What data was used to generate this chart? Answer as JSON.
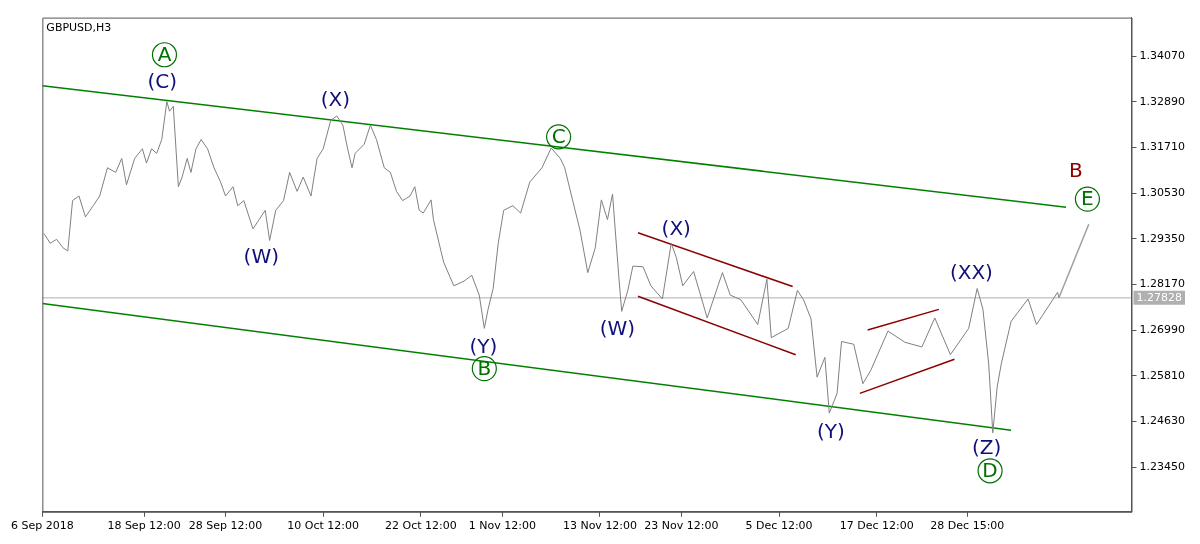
{
  "chart_data": {
    "type": "line",
    "title": "GBPUSD,H3",
    "xlim": [
      "2018-09-06T00:00",
      "2019-01-17T19:00"
    ],
    "ylim": [
      1.223,
      1.3507
    ],
    "xticks": [
      {
        "value": "2018-09-06T00:00",
        "label": "6 Sep 2018"
      },
      {
        "value": "2018-09-18T12:00",
        "label": "18 Sep 12:00"
      },
      {
        "value": "2018-09-28T12:00",
        "label": "28 Sep 12:00"
      },
      {
        "value": "2018-10-10T12:00",
        "label": "10 Oct 12:00"
      },
      {
        "value": "2018-10-22T12:00",
        "label": "22 Oct 12:00"
      },
      {
        "value": "2018-11-01T12:00",
        "label": "1 Nov 12:00"
      },
      {
        "value": "2018-11-13T12:00",
        "label": "13 Nov 12:00"
      },
      {
        "value": "2018-11-23T12:00",
        "label": "23 Nov 12:00"
      },
      {
        "value": "2018-12-05T12:00",
        "label": "5 Dec 12:00"
      },
      {
        "value": "2018-12-17T12:00",
        "label": "17 Dec 12:00"
      },
      {
        "value": "2018-12-28T15:00",
        "label": "28 Dec 15:00"
      }
    ],
    "yticks": [
      {
        "value": 1.2345,
        "label": "1.23450"
      },
      {
        "value": 1.2463,
        "label": "1.24630"
      },
      {
        "value": 1.2581,
        "label": "1.25810"
      },
      {
        "value": 1.2699,
        "label": "1.26990"
      },
      {
        "value": 1.2817,
        "label": "1.28170"
      },
      {
        "value": 1.2935,
        "label": "1.29350"
      },
      {
        "value": 1.3053,
        "label": "1.30530"
      },
      {
        "value": 1.3171,
        "label": "1.31710"
      },
      {
        "value": 1.3289,
        "label": "1.32890"
      },
      {
        "value": 1.3407,
        "label": "1.34070"
      }
    ],
    "grid": false,
    "legend": false,
    "marker": "none",
    "line_style": "solid",
    "series": [
      {
        "color": "#808080",
        "x": [
          "2018-09-06T05:00",
          "2018-09-06T23:00",
          "2018-09-07T18:00",
          "2018-09-08T13:00",
          "2018-09-09T03:00",
          "2018-09-09T17:00",
          "2018-09-10T12:00",
          "2018-09-11T07:00",
          "2018-09-12T06:00",
          "2018-09-13T01:00",
          "2018-09-14T00:00",
          "2018-09-15T00:00",
          "2018-09-15T18:00",
          "2018-09-16T08:00",
          "2018-09-17T08:00",
          "2018-09-18T07:00",
          "2018-09-18T19:00",
          "2018-09-19T10:00",
          "2018-09-20T01:00",
          "2018-09-20T16:00",
          "2018-09-21T07:00",
          "2018-09-21T15:00",
          "2018-09-22T02:00",
          "2018-09-22T17:00",
          "2018-09-23T04:00",
          "2018-09-23T19:00",
          "2018-09-24T06:00",
          "2018-09-24T21:00",
          "2018-09-25T12:00",
          "2018-09-26T07:00",
          "2018-09-27T02:00",
          "2018-09-27T21:00",
          "2018-09-28T12:00",
          "2018-09-29T10:00",
          "2018-09-30T00:00",
          "2018-09-30T18:00",
          "2018-10-01T21:00",
          "2018-10-02T15:00",
          "2018-10-03T09:00",
          "2018-10-03T22:00",
          "2018-10-04T16:00",
          "2018-10-05T15:00",
          "2018-10-06T09:00",
          "2018-10-07T07:00",
          "2018-10-08T01:00",
          "2018-10-09T00:00",
          "2018-10-09T18:00",
          "2018-10-10T12:00",
          "2018-10-11T10:00",
          "2018-10-12T04:00",
          "2018-10-12T22:00",
          "2018-10-13T12:00",
          "2018-10-14T01:00",
          "2018-10-14T10:00",
          "2018-10-15T13:00",
          "2018-10-16T07:00",
          "2018-10-17T01:00",
          "2018-10-18T00:00",
          "2018-10-18T18:00",
          "2018-10-19T12:00",
          "2018-10-20T06:00",
          "2018-10-21T04:00",
          "2018-10-21T18:00",
          "2018-10-22T07:00",
          "2018-10-22T19:00",
          "2018-10-23T18:00",
          "2018-10-24T01:00",
          "2018-10-25T07:00",
          "2018-10-26T13:00",
          "2018-10-27T19:00",
          "2018-10-28T18:00",
          "2018-10-29T16:00",
          "2018-10-30T07:00",
          "2018-10-30T18:00",
          "2018-10-31T09:00",
          "2018-11-01T00:00",
          "2018-11-01T16:00",
          "2018-11-02T19:00",
          "2018-11-03T18:00",
          "2018-11-04T21:00",
          "2018-11-06T09:00",
          "2018-11-07T12:00",
          "2018-11-08T15:00",
          "2018-11-09T04:00",
          "2018-11-10T03:00",
          "2018-11-11T01:00",
          "2018-11-12T00:00",
          "2018-11-12T22:00",
          "2018-11-13T16:00",
          "2018-11-14T10:00",
          "2018-11-15T01:00",
          "2018-11-15T20:00",
          "2018-11-16T04:00",
          "2018-11-16T22:00",
          "2018-11-17T13:00",
          "2018-11-18T19:00",
          "2018-11-19T18:00",
          "2018-11-21T04:00",
          "2018-11-22T06:00",
          "2018-11-22T21:00",
          "2018-11-23T16:00",
          "2018-11-25T00:00",
          "2018-11-26T16:00",
          "2018-11-28T13:00",
          "2018-11-29T12:00",
          "2018-11-30T19:00",
          "2018-12-02T21:00",
          "2018-12-04T00:00",
          "2018-12-04T13:00",
          "2018-12-06T15:00",
          "2018-12-07T18:00",
          "2018-12-08T12:00",
          "2018-12-09T10:00",
          "2018-12-10T04:00",
          "2018-12-11T03:00",
          "2018-12-11T16:00",
          "2018-12-12T15:00",
          "2018-12-13T04:00",
          "2018-12-14T16:00",
          "2018-12-15T19:00",
          "2018-12-16T18:00",
          "2018-12-18T21:00",
          "2018-12-20T23:00",
          "2018-12-23T01:00",
          "2018-12-24T15:00",
          "2018-12-26T13:00",
          "2018-12-28T19:00",
          "2018-12-29T20:00",
          "2018-12-30T13:00",
          "2018-12-31T06:00",
          "2018-12-31T18:00",
          "2019-01-01T07:00",
          "2019-01-01T19:00",
          "2019-01-03T00:00",
          "2019-01-05T02:00",
          "2019-01-06T03:00",
          "2019-01-08T17:00",
          "2019-01-08T21:00"
        ],
        "values": [
          1.2949,
          1.2924,
          1.2934,
          1.2912,
          1.2904,
          1.3034,
          1.3046,
          1.2992,
          1.3021,
          1.3046,
          1.3119,
          1.3107,
          1.3143,
          1.3075,
          1.3143,
          1.3168,
          1.3131,
          1.3168,
          1.3156,
          1.3192,
          1.329,
          1.3265,
          1.3278,
          1.307,
          1.3095,
          1.3143,
          1.3107,
          1.3168,
          1.3192,
          1.3168,
          1.3119,
          1.3083,
          1.3046,
          1.307,
          1.3021,
          1.3034,
          1.2961,
          1.2985,
          1.3009,
          1.2931,
          1.3009,
          1.3034,
          1.3107,
          1.3058,
          1.3095,
          1.3046,
          1.3143,
          1.3168,
          1.3241,
          1.3253,
          1.3229,
          1.3168,
          1.3119,
          1.3156,
          1.318,
          1.3229,
          1.3192,
          1.3119,
          1.3107,
          1.3058,
          1.3034,
          1.3046,
          1.307,
          1.3009,
          1.3002,
          1.3036,
          1.2985,
          1.2875,
          1.2814,
          1.2826,
          1.2841,
          1.279,
          1.2704,
          1.2753,
          1.2807,
          1.2924,
          1.3009,
          1.3021,
          1.3002,
          1.3082,
          1.3119,
          1.317,
          1.3143,
          1.3119,
          1.3036,
          1.2958,
          1.2848,
          1.2912,
          1.3036,
          1.2985,
          1.3051,
          1.2831,
          1.2748,
          1.2802,
          1.2865,
          1.2863,
          1.2814,
          1.278,
          1.2924,
          1.2887,
          1.2814,
          1.2851,
          1.2731,
          1.2848,
          1.279,
          1.2778,
          1.2714,
          1.2831,
          1.268,
          1.2704,
          1.2802,
          1.2778,
          1.2729,
          1.2578,
          1.2629,
          1.2485,
          1.2536,
          1.267,
          1.2663,
          1.2561,
          1.2595,
          1.2697,
          1.2668,
          1.2656,
          1.2731,
          1.2636,
          1.2704,
          1.2807,
          1.2753,
          1.2612,
          1.2434,
          1.2553,
          1.2612,
          1.2722,
          1.278,
          1.2714,
          1.2797,
          1.2783
        ]
      },
      {
        "color": "#008000",
        "x": [
          "2018-09-06T00:00",
          "2019-01-09T18:00"
        ],
        "values": [
          1.3331,
          1.3017
        ]
      },
      {
        "color": "#008000",
        "x": [
          "2018-09-06T00:00",
          "2019-01-03T00:00"
        ],
        "values": [
          1.2768,
          1.2441
        ]
      },
      {
        "color": "#8b0000",
        "x": [
          "2018-11-18T04:00",
          "2018-12-07T04:00"
        ],
        "values": [
          1.2951,
          1.2812
        ]
      },
      {
        "color": "#8b0000",
        "x": [
          "2018-11-18T04:00",
          "2018-12-07T13:00"
        ],
        "values": [
          1.2787,
          1.2636
        ]
      },
      {
        "color": "#8b0000",
        "x": [
          "2018-12-16T09:00",
          "2018-12-25T03:00"
        ],
        "values": [
          1.27,
          1.2753
        ]
      },
      {
        "color": "#8b0000",
        "x": [
          "2018-12-15T10:00",
          "2018-12-27T01:00"
        ],
        "values": [
          1.2536,
          1.2624
        ]
      },
      {
        "color": "#a0a0a0",
        "x": [
          "2019-01-08T21:00",
          "2019-01-12T13:00"
        ],
        "values": [
          1.2783,
          1.2973
        ]
      }
    ],
    "ref_lines": [
      {
        "axis": "y",
        "value": 1.27828,
        "label": "1.27828",
        "color": "#b0b0b0"
      }
    ],
    "annotations": [
      "(C)",
      {
        "text": "A",
        "x": "2018-09-21T00:00",
        "y": 1.3411
      },
      "(X)",
      "(W)",
      "(Y)",
      {
        "text": "B",
        "x": "2018-10-30T07:00",
        "y": 1.26
      },
      {
        "text": "C",
        "x": "2018-11-08T10:00",
        "y": 1.3199
      },
      "(W)",
      "(X)",
      "(Y)",
      "(XX)",
      "(Z)",
      {
        "text": "D",
        "x": "2018-12-31T10:00",
        "y": 1.2336
      },
      "B",
      {
        "text": "E",
        "x": "2019-01-12T09:00",
        "y": 1.3038
      }
    ]
  }
}
